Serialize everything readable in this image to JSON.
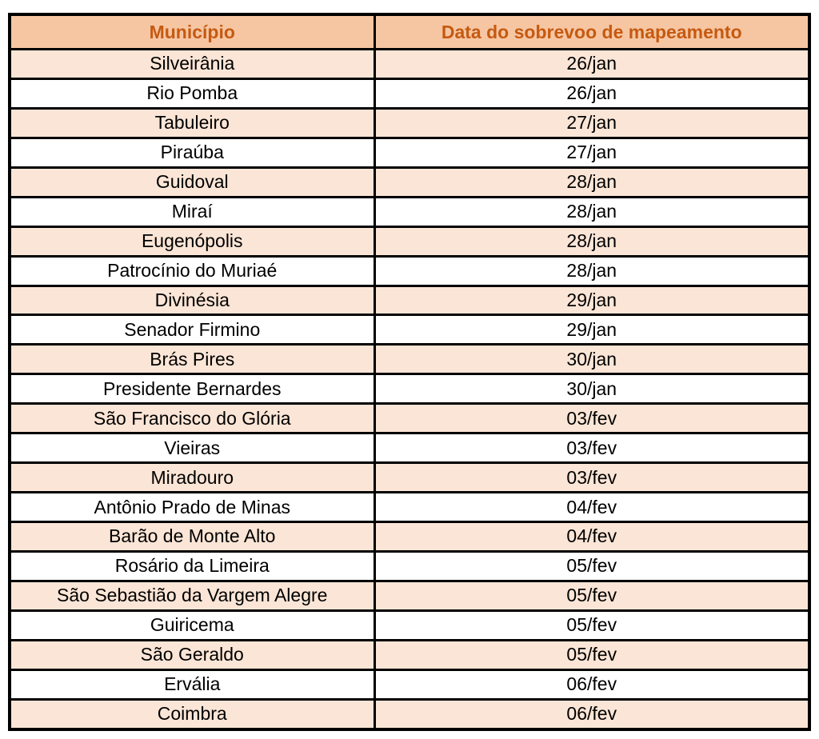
{
  "table": {
    "columns": [
      {
        "key": "municipio",
        "label": "Município"
      },
      {
        "key": "data",
        "label": "Data do sobrevoo de mapeamento"
      }
    ],
    "rows": [
      {
        "municipio": "Silveirânia",
        "data": "26/jan"
      },
      {
        "municipio": "Rio Pomba",
        "data": "26/jan"
      },
      {
        "municipio": "Tabuleiro",
        "data": "27/jan"
      },
      {
        "municipio": "Piraúba",
        "data": "27/jan"
      },
      {
        "municipio": "Guidoval",
        "data": "28/jan"
      },
      {
        "municipio": "Miraí",
        "data": "28/jan"
      },
      {
        "municipio": "Eugenópolis",
        "data": "28/jan"
      },
      {
        "municipio": "Patrocínio do Muriaé",
        "data": "28/jan"
      },
      {
        "municipio": "Divinésia",
        "data": "29/jan"
      },
      {
        "municipio": "Senador Firmino",
        "data": "29/jan"
      },
      {
        "municipio": "Brás Pires",
        "data": "30/jan"
      },
      {
        "municipio": "Presidente Bernardes",
        "data": "30/jan"
      },
      {
        "municipio": "São Francisco do Glória",
        "data": "03/fev"
      },
      {
        "municipio": "Vieiras",
        "data": "03/fev"
      },
      {
        "municipio": "Miradouro",
        "data": "03/fev"
      },
      {
        "municipio": "Antônio Prado de Minas",
        "data": "04/fev"
      },
      {
        "municipio": "Barão de Monte Alto",
        "data": "04/fev"
      },
      {
        "municipio": "Rosário da Limeira",
        "data": "05/fev"
      },
      {
        "municipio": "São Sebastião da Vargem Alegre",
        "data": "05/fev"
      },
      {
        "municipio": "Guiricema",
        "data": "05/fev"
      },
      {
        "municipio": "São Geraldo",
        "data": "05/fev"
      },
      {
        "municipio": "Ervália",
        "data": "06/fev"
      },
      {
        "municipio": "Coimbra",
        "data": "06/fev"
      }
    ]
  },
  "colors": {
    "header_bg": "#F6C6A3",
    "header_text": "#C55A11",
    "stripe_bg": "#FBE5D6",
    "row_bg": "#FFFFFF",
    "text": "#000000",
    "border": "#000000"
  }
}
